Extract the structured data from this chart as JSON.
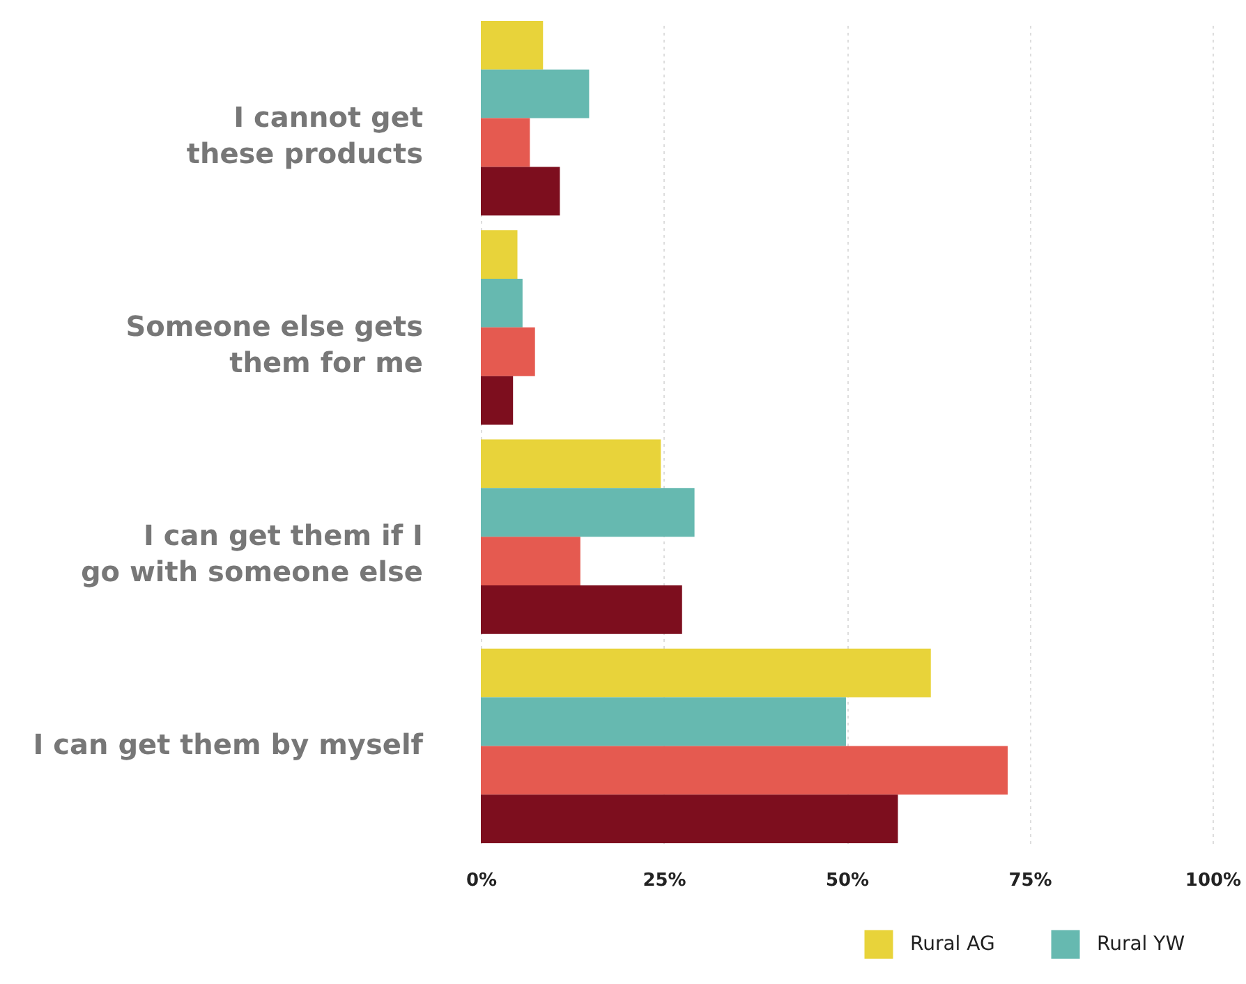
{
  "chart_data": {
    "type": "bar",
    "orientation": "horizontal",
    "categories": [
      "I cannot get these products",
      "Someone else gets them for me",
      "I can get them if I go with someone else",
      "I can get them by myself"
    ],
    "series": [
      {
        "name": "Rural AG",
        "color": "#e8d33a",
        "values": [
          8.5,
          5.0,
          24.6,
          61.5
        ]
      },
      {
        "name": "Rural YW",
        "color": "#66b9b0",
        "values": [
          14.8,
          5.7,
          29.2,
          49.9
        ]
      },
      {
        "color": "#e55a50",
        "values": [
          6.7,
          7.4,
          13.6,
          72
        ]
      },
      {
        "color": "#7d0e1e",
        "values": [
          10.8,
          4.4,
          27.5,
          57
        ]
      }
    ],
    "xlim": [
      0,
      100
    ],
    "xticks": [
      {
        "value": 0,
        "label": "0%"
      },
      {
        "value": 25,
        "label": "25%"
      },
      {
        "value": 50,
        "label": "50%"
      },
      {
        "value": 75,
        "label": "75%"
      },
      {
        "value": 100,
        "label": "100%"
      }
    ],
    "grid": "x",
    "legend": "bottom right"
  }
}
